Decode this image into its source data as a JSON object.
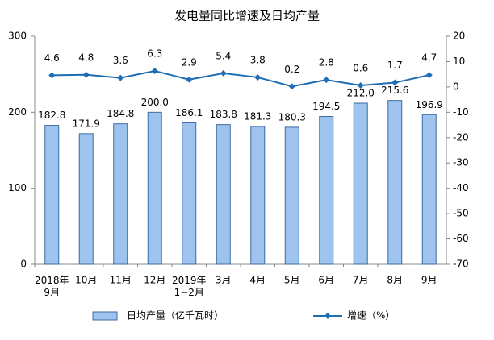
{
  "chart_data": {
    "type": "bar",
    "title": "发电量同比增速及日均产量",
    "categories": [
      "2018年\n9月",
      "10月",
      "11月",
      "12月",
      "2019年\n1−2月",
      "3月",
      "4月",
      "5月",
      "6月",
      "7月",
      "8月",
      "9月"
    ],
    "series": [
      {
        "name": "日均产量（亿千瓦时）",
        "type": "bar",
        "color": "#9dc3ee",
        "edge": "#3d6da3",
        "values": [
          182.8,
          171.9,
          184.8,
          200.0,
          186.1,
          183.8,
          181.3,
          180.3,
          194.5,
          212.0,
          215.6,
          196.9
        ],
        "value_labels": [
          "182.8",
          "171.9",
          "184.8",
          "200.0",
          "186.1",
          "183.8",
          "181.3",
          "180.3",
          "194.5",
          "212.0",
          "215.6",
          "196.9"
        ]
      },
      {
        "name": "增速（%）",
        "type": "line",
        "axis": "y2",
        "color": "#1f6db4",
        "values": [
          4.6,
          4.8,
          3.6,
          6.3,
          2.9,
          5.4,
          3.8,
          0.2,
          2.8,
          0.6,
          1.7,
          4.7
        ]
      }
    ],
    "ylim": [
      0,
      300
    ],
    "yticks": [
      0,
      100,
      200,
      300
    ],
    "y2lim": [
      -70,
      20
    ],
    "y2ticks": [
      20,
      10,
      0,
      -10,
      -20,
      -30,
      -40,
      -50,
      -60,
      -70
    ],
    "grid": false,
    "legend": "bottom"
  }
}
